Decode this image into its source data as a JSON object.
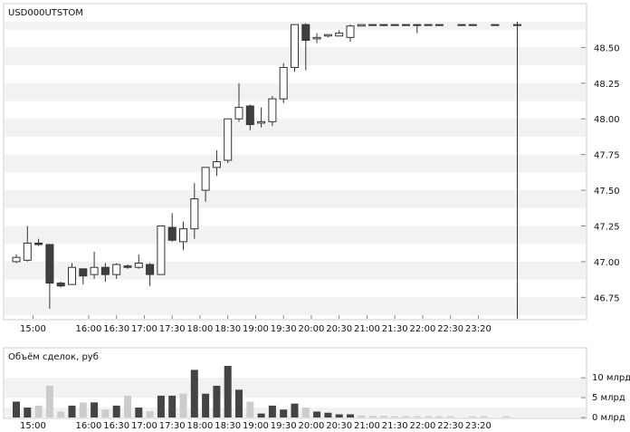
{
  "chart_data": [
    {
      "type": "candlestick",
      "title": "USD000UTSTOM",
      "ylim": [
        46.6,
        48.68
      ],
      "yticks": [
        46.75,
        47.0,
        47.25,
        47.5,
        47.75,
        48.0,
        48.25,
        48.5
      ],
      "ytick_labels": [
        "46.75",
        "47.00",
        "47.25",
        "47.50",
        "47.75",
        "48.00",
        "48.25",
        "48.50"
      ],
      "x_labels": [
        "15:00",
        "16:00",
        "16:30",
        "17:00",
        "17:30",
        "18:00",
        "18:30",
        "19:00",
        "19:30",
        "20:00",
        "20:30",
        "21:00",
        "21:30",
        "22:00",
        "22:30",
        "23:20"
      ],
      "x_label_slots": [
        1.5,
        6.5,
        9,
        11.5,
        14,
        16.5,
        19,
        21.5,
        24,
        26.5,
        29,
        31.5,
        34,
        36.5,
        39,
        41.5
      ],
      "grid": "horizontal bands",
      "candles": [
        {
          "o": 47.0,
          "h": 47.05,
          "l": 46.99,
          "c": 47.03
        },
        {
          "o": 47.01,
          "h": 47.25,
          "l": 47.0,
          "c": 47.13
        },
        {
          "o": 47.13,
          "h": 47.16,
          "l": 47.11,
          "c": 47.12
        },
        {
          "o": 47.12,
          "h": 47.12,
          "l": 46.67,
          "c": 46.85
        },
        {
          "o": 46.85,
          "h": 46.86,
          "l": 46.82,
          "c": 46.83
        },
        {
          "o": 46.84,
          "h": 46.99,
          "l": 46.84,
          "c": 46.96
        },
        {
          "o": 46.95,
          "h": 46.95,
          "l": 46.84,
          "c": 46.9
        },
        {
          "o": 46.91,
          "h": 47.07,
          "l": 46.88,
          "c": 46.96
        },
        {
          "o": 46.96,
          "h": 46.99,
          "l": 46.86,
          "c": 46.91
        },
        {
          "o": 46.91,
          "h": 46.99,
          "l": 46.88,
          "c": 46.98
        },
        {
          "o": 46.97,
          "h": 46.98,
          "l": 46.95,
          "c": 46.96
        },
        {
          "o": 46.96,
          "h": 47.05,
          "l": 46.95,
          "c": 46.99
        },
        {
          "o": 46.98,
          "h": 46.99,
          "l": 46.83,
          "c": 46.91
        },
        {
          "o": 46.91,
          "h": 47.25,
          "l": 46.91,
          "c": 47.25
        },
        {
          "o": 47.24,
          "h": 47.34,
          "l": 47.14,
          "c": 47.15
        },
        {
          "o": 47.14,
          "h": 47.28,
          "l": 47.08,
          "c": 47.23
        },
        {
          "o": 47.23,
          "h": 47.55,
          "l": 47.16,
          "c": 47.44
        },
        {
          "o": 47.5,
          "h": 47.66,
          "l": 47.42,
          "c": 47.66
        },
        {
          "o": 47.66,
          "h": 47.78,
          "l": 47.6,
          "c": 47.7
        },
        {
          "o": 47.71,
          "h": 48.0,
          "l": 47.69,
          "c": 48.0
        },
        {
          "o": 48.0,
          "h": 48.25,
          "l": 47.98,
          "c": 48.08
        },
        {
          "o": 48.09,
          "h": 48.1,
          "l": 47.92,
          "c": 47.96
        },
        {
          "o": 47.97,
          "h": 48.08,
          "l": 47.94,
          "c": 47.98
        },
        {
          "o": 47.98,
          "h": 48.16,
          "l": 47.95,
          "c": 48.14
        },
        {
          "o": 48.14,
          "h": 48.39,
          "l": 48.11,
          "c": 48.36
        },
        {
          "o": 48.36,
          "h": 48.66,
          "l": 48.33,
          "c": 48.66
        },
        {
          "o": 48.66,
          "h": 48.67,
          "l": 48.34,
          "c": 48.55
        },
        {
          "o": 48.56,
          "h": 48.6,
          "l": 48.53,
          "c": 48.57
        },
        {
          "o": 48.58,
          "h": 48.59,
          "l": 48.57,
          "c": 48.59
        },
        {
          "o": 48.58,
          "h": 48.62,
          "l": 48.58,
          "c": 48.6
        },
        {
          "o": 48.57,
          "h": 48.66,
          "l": 48.54,
          "c": 48.65
        },
        {
          "o": 48.65,
          "h": 48.66,
          "l": 48.65,
          "c": 48.66
        },
        {
          "o": 48.66,
          "h": 48.66,
          "l": 48.65,
          "c": 48.66
        },
        {
          "o": 48.66,
          "h": 48.66,
          "l": 48.65,
          "c": 48.66
        },
        {
          "o": 48.66,
          "h": 48.66,
          "l": 48.66,
          "c": 48.66
        },
        {
          "o": 48.66,
          "h": 48.66,
          "l": 48.66,
          "c": 48.66
        },
        {
          "o": 48.66,
          "h": 48.66,
          "l": 48.6,
          "c": 48.66
        },
        {
          "o": 48.66,
          "h": 48.66,
          "l": 48.66,
          "c": 48.66
        },
        {
          "o": 48.66,
          "h": 48.66,
          "l": 48.66,
          "c": 48.66
        },
        null,
        {
          "o": 48.66,
          "h": 48.66,
          "l": 48.66,
          "c": 48.66
        },
        {
          "o": 48.66,
          "h": 48.66,
          "l": 48.66,
          "c": 48.66
        },
        null,
        {
          "o": 48.66,
          "h": 48.66,
          "l": 48.66,
          "c": 48.66
        },
        null,
        {
          "o": 48.66,
          "h": 48.68,
          "l": 46.6,
          "c": 48.66
        }
      ],
      "colors": {
        "up_fill": "#ffffff",
        "down_fill": "#3f3f3f",
        "outline": "#333333",
        "band": "#f2f2f2"
      }
    },
    {
      "type": "bar",
      "title": "Объём сделок, руб",
      "ylim": [
        0,
        13
      ],
      "yticks": [
        0,
        5,
        10
      ],
      "ytick_labels": [
        "0 млрд",
        "5 млрд",
        "10 млрд"
      ],
      "x_labels": [
        "15:00",
        "16:00",
        "16:30",
        "17:00",
        "17:30",
        "18:00",
        "18:30",
        "19:00",
        "19:30",
        "20:00",
        "20:30",
        "21:00",
        "21:30",
        "22:00",
        "22:30",
        "23:20"
      ],
      "x_label_slots": [
        1.5,
        6.5,
        9,
        11.5,
        14,
        16.5,
        19,
        21.5,
        24,
        26.5,
        29,
        31.5,
        34,
        36.5,
        39,
        41.5
      ],
      "values": [
        4.0,
        2.5,
        3.0,
        8.0,
        1.5,
        3.0,
        3.8,
        3.8,
        2.0,
        3.0,
        5.5,
        2.5,
        1.6,
        5.5,
        5.5,
        6.0,
        12.0,
        6.0,
        8.0,
        13.0,
        7.0,
        4.0,
        1.0,
        3.0,
        2.0,
        3.5,
        2.5,
        1.5,
        1.2,
        0.8,
        0.8,
        0.5,
        0.4,
        0.4,
        0.3,
        0.3,
        0.3,
        0.3,
        0.3,
        0.3,
        0,
        0.3,
        0.3,
        0,
        0.3,
        0
      ],
      "shades": [
        "d",
        "d",
        "l",
        "l",
        "l",
        "d",
        "l",
        "d",
        "l",
        "d",
        "l",
        "d",
        "l",
        "d",
        "d",
        "l",
        "d",
        "d",
        "d",
        "d",
        "d",
        "l",
        "d",
        "d",
        "d",
        "d",
        "l",
        "d",
        "d",
        "d",
        "d",
        "l",
        "l",
        "l",
        "l",
        "l",
        "l",
        "l",
        "l",
        "l",
        "l",
        "l",
        "l",
        "l",
        "l",
        "l"
      ],
      "colors": {
        "dark": "#444444",
        "light": "#cccccc",
        "band": "#f2f2f2"
      }
    }
  ]
}
